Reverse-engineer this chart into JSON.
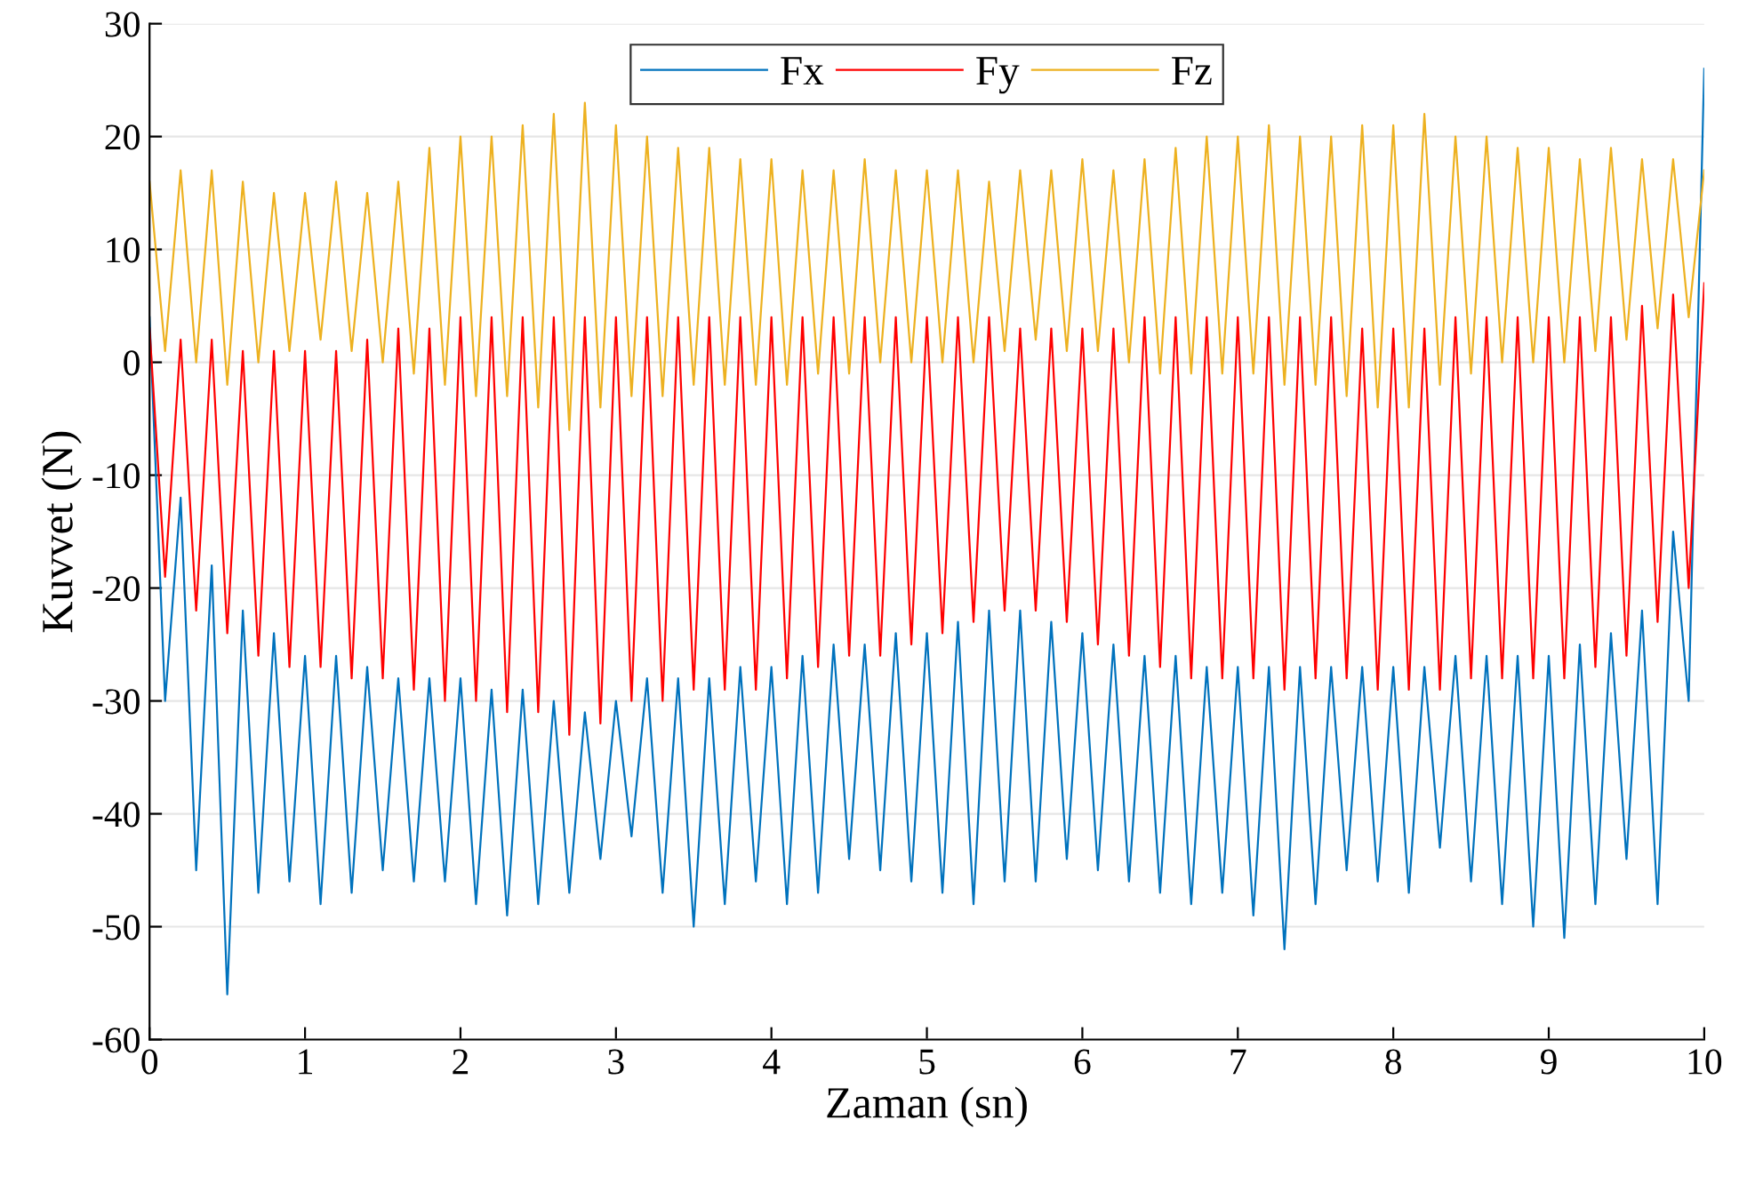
{
  "chart_data": {
    "type": "line",
    "xlabel": "Zaman (sn)",
    "ylabel": "Kuvvet (N)",
    "x": [
      0,
      0.1,
      0.2,
      0.3,
      0.4,
      0.5,
      0.6,
      0.7,
      0.8,
      0.9,
      1,
      1.1,
      1.2,
      1.3,
      1.4,
      1.5,
      1.6,
      1.7,
      1.8,
      1.9,
      2,
      2.1,
      2.2,
      2.3,
      2.4,
      2.5,
      2.6,
      2.7,
      2.8,
      2.9,
      3,
      3.1,
      3.2,
      3.3,
      3.4,
      3.5,
      3.6,
      3.7,
      3.8,
      3.9,
      4,
      4.1,
      4.2,
      4.3,
      4.4,
      4.5,
      4.6,
      4.7,
      4.8,
      4.9,
      5,
      5.1,
      5.2,
      5.3,
      5.4,
      5.5,
      5.6,
      5.7,
      5.8,
      5.9,
      6,
      6.1,
      6.2,
      6.3,
      6.4,
      6.5,
      6.6,
      6.7,
      6.8,
      6.9,
      7,
      7.1,
      7.2,
      7.3,
      7.4,
      7.5,
      7.6,
      7.7,
      7.8,
      7.9,
      8,
      8.1,
      8.2,
      8.3,
      8.4,
      8.5,
      8.6,
      8.7,
      8.8,
      8.9,
      9,
      9.1,
      9.2,
      9.3,
      9.4,
      9.5,
      9.6,
      9.7,
      9.8,
      9.9,
      10
    ],
    "series": [
      {
        "name": "Fx",
        "color": "#0072bd",
        "values": [
          4,
          -30,
          -12,
          -45,
          -18,
          -56,
          -22,
          -47,
          -24,
          -46,
          -26,
          -48,
          -26,
          -47,
          -27,
          -45,
          -28,
          -46,
          -28,
          -46,
          -28,
          -48,
          -29,
          -49,
          -29,
          -48,
          -30,
          -47,
          -31,
          -44,
          -30,
          -42,
          -28,
          -47,
          -28,
          -50,
          -28,
          -48,
          -27,
          -46,
          -27,
          -48,
          -26,
          -47,
          -25,
          -44,
          -25,
          -45,
          -24,
          -46,
          -24,
          -47,
          -23,
          -48,
          -22,
          -46,
          -22,
          -46,
          -23,
          -44,
          -24,
          -45,
          -25,
          -46,
          -26,
          -47,
          -26,
          -48,
          -27,
          -47,
          -27,
          -49,
          -27,
          -52,
          -27,
          -48,
          -27,
          -45,
          -27,
          -46,
          -27,
          -47,
          -27,
          -43,
          -26,
          -46,
          -26,
          -48,
          -26,
          -50,
          -26,
          -51,
          -25,
          -48,
          -24,
          -44,
          -22,
          -48,
          -15,
          -30,
          26
        ]
      },
      {
        "name": "Fy",
        "color": "#ff0000",
        "values": [
          3,
          -19,
          2,
          -22,
          2,
          -24,
          1,
          -26,
          1,
          -27,
          1,
          -27,
          1,
          -28,
          2,
          -28,
          3,
          -29,
          3,
          -30,
          4,
          -30,
          4,
          -31,
          4,
          -31,
          4,
          -33,
          4,
          -32,
          4,
          -30,
          4,
          -30,
          4,
          -29,
          4,
          -29,
          4,
          -29,
          4,
          -28,
          4,
          -27,
          4,
          -26,
          4,
          -26,
          4,
          -25,
          4,
          -24,
          4,
          -23,
          4,
          -22,
          3,
          -22,
          3,
          -23,
          3,
          -25,
          3,
          -26,
          4,
          -27,
          4,
          -28,
          4,
          -28,
          4,
          -28,
          4,
          -29,
          4,
          -28,
          4,
          -28,
          3,
          -29,
          3,
          -29,
          3,
          -29,
          4,
          -28,
          4,
          -28,
          4,
          -28,
          4,
          -28,
          4,
          -27,
          4,
          -26,
          5,
          -23,
          6,
          -20,
          7
        ]
      },
      {
        "name": "Fz",
        "color": "#edb120",
        "values": [
          16,
          1,
          17,
          0,
          17,
          -2,
          16,
          0,
          15,
          1,
          15,
          2,
          16,
          1,
          15,
          0,
          16,
          -1,
          19,
          -2,
          20,
          -3,
          20,
          -3,
          21,
          -4,
          22,
          -6,
          23,
          -4,
          21,
          -3,
          20,
          -3,
          19,
          -2,
          19,
          -2,
          18,
          -2,
          18,
          -2,
          17,
          -1,
          17,
          -1,
          18,
          0,
          17,
          0,
          17,
          0,
          17,
          0,
          16,
          1,
          17,
          2,
          17,
          1,
          18,
          1,
          17,
          0,
          18,
          -1,
          19,
          -1,
          20,
          -1,
          20,
          -1,
          21,
          -2,
          20,
          -2,
          20,
          -3,
          21,
          -4,
          21,
          -4,
          22,
          -2,
          20,
          -1,
          20,
          0,
          19,
          0,
          19,
          0,
          18,
          1,
          19,
          2,
          18,
          3,
          18,
          4,
          17
        ]
      }
    ],
    "xlim": [
      0,
      10
    ],
    "xticks": [
      0,
      1,
      2,
      3,
      4,
      5,
      6,
      7,
      8,
      9,
      10
    ],
    "ylim": [
      -60,
      30
    ],
    "yticks": [
      -60,
      -50,
      -40,
      -30,
      -20,
      -10,
      0,
      10,
      20,
      30
    ],
    "grid": "y",
    "legend": "top",
    "marker": "none",
    "line_style": "solid"
  }
}
